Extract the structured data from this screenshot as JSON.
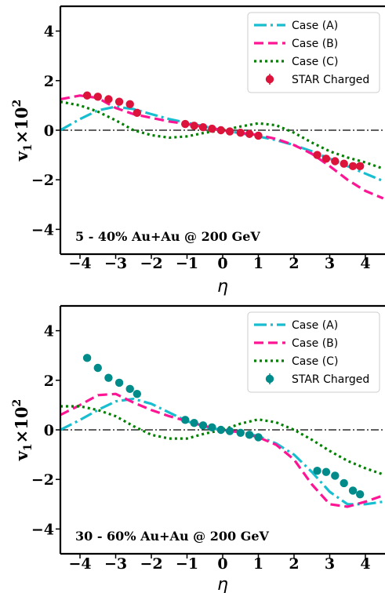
{
  "chart_data": [
    {
      "type": "line",
      "annotation": "5 - 40% Au+Au @ 200 GeV",
      "xlabel": "η",
      "ylabel": {
        "base": "v",
        "sub": "1",
        "mid": "×10",
        "sup": "2"
      },
      "xlim": [
        -4.55,
        4.55
      ],
      "ylim": [
        -5,
        5
      ],
      "xticks": [
        -4,
        -3,
        -2,
        -1,
        0,
        1,
        2,
        3,
        4
      ],
      "yticks": [
        -4,
        -2,
        0,
        2,
        4
      ],
      "tick_labels_x": [
        "−4",
        "−3",
        "−2",
        "−1",
        "0",
        "1",
        "2",
        "3",
        "4"
      ],
      "tick_labels_y": [
        "−4",
        "−2",
        "0",
        "2",
        "4"
      ],
      "reference_line": 0,
      "legend_position": "top-right",
      "series": [
        {
          "name": "Case (A)",
          "style": "dashdot",
          "color": "#17becf",
          "x": [
            -4.55,
            -4.0,
            -3.5,
            -3.0,
            -2.5,
            -2.0,
            -1.5,
            -1.0,
            -0.5,
            0.0,
            0.5,
            1.0,
            1.5,
            2.0,
            2.5,
            3.0,
            3.5,
            4.0,
            4.5
          ],
          "y": [
            0.0,
            0.45,
            0.8,
            0.95,
            0.85,
            0.65,
            0.45,
            0.3,
            0.15,
            0.0,
            -0.12,
            -0.25,
            -0.4,
            -0.6,
            -0.85,
            -1.15,
            -1.45,
            -1.75,
            -2.05
          ]
        },
        {
          "name": "Case (B)",
          "style": "dashed",
          "color": "#ff1493",
          "x": [
            -4.55,
            -4.0,
            -3.5,
            -3.0,
            -2.5,
            -2.0,
            -1.5,
            -1.0,
            -0.5,
            0.0,
            0.5,
            1.0,
            1.5,
            2.0,
            2.5,
            3.0,
            3.5,
            4.0,
            4.5
          ],
          "y": [
            1.25,
            1.4,
            1.3,
            0.9,
            0.65,
            0.5,
            0.35,
            0.25,
            0.12,
            0.0,
            -0.1,
            -0.2,
            -0.35,
            -0.6,
            -0.95,
            -1.45,
            -2.0,
            -2.45,
            -2.75
          ]
        },
        {
          "name": "Case (C)",
          "style": "dotted",
          "color": "#008000",
          "x": [
            -4.55,
            -4.0,
            -3.5,
            -3.0,
            -2.5,
            -2.0,
            -1.5,
            -1.0,
            -0.5,
            0.0,
            0.5,
            1.0,
            1.5,
            2.0,
            2.5,
            3.0,
            3.5,
            4.0,
            4.5
          ],
          "y": [
            1.15,
            1.0,
            0.75,
            0.4,
            0.0,
            -0.2,
            -0.3,
            -0.25,
            -0.1,
            0.0,
            0.15,
            0.28,
            0.2,
            -0.1,
            -0.5,
            -0.85,
            -1.1,
            -1.3,
            -1.55
          ]
        },
        {
          "name": "STAR Charged",
          "style": "markers",
          "color": "#dc143c",
          "x": [
            -3.8,
            -3.5,
            -3.2,
            -2.9,
            -2.6,
            -2.4,
            -1.05,
            -0.8,
            -0.55,
            -0.3,
            -0.05,
            0.2,
            0.5,
            0.75,
            1.0,
            2.65,
            2.9,
            3.15,
            3.4,
            3.65,
            3.85
          ],
          "y": [
            1.4,
            1.35,
            1.25,
            1.15,
            1.05,
            0.7,
            0.25,
            0.18,
            0.12,
            0.06,
            0.0,
            -0.05,
            -0.1,
            -0.15,
            -0.22,
            -1.0,
            -1.15,
            -1.25,
            -1.35,
            -1.45,
            -1.45
          ]
        }
      ]
    },
    {
      "type": "line",
      "annotation": "30 - 60% Au+Au @ 200 GeV",
      "xlabel": "η",
      "ylabel": {
        "base": "v",
        "sub": "1",
        "mid": "×10",
        "sup": "2"
      },
      "xlim": [
        -4.55,
        4.55
      ],
      "ylim": [
        -5,
        5
      ],
      "xticks": [
        -4,
        -3,
        -2,
        -1,
        0,
        1,
        2,
        3,
        4
      ],
      "yticks": [
        -4,
        -2,
        0,
        2,
        4
      ],
      "tick_labels_x": [
        "−4",
        "−3",
        "−2",
        "−1",
        "0",
        "1",
        "2",
        "3",
        "4"
      ],
      "tick_labels_y": [
        "−4",
        "−2",
        "0",
        "2",
        "4"
      ],
      "reference_line": 0,
      "legend_position": "top-right",
      "series": [
        {
          "name": "Case (A)",
          "style": "dashdot",
          "color": "#17becf",
          "x": [
            -4.55,
            -4.0,
            -3.5,
            -3.0,
            -2.5,
            -2.0,
            -1.5,
            -1.0,
            -0.5,
            0.0,
            0.5,
            1.0,
            1.5,
            2.0,
            2.5,
            3.0,
            3.5,
            4.0,
            4.5
          ],
          "y": [
            0.0,
            0.4,
            0.8,
            1.15,
            1.25,
            1.05,
            0.7,
            0.35,
            0.1,
            0.0,
            -0.1,
            -0.25,
            -0.55,
            -1.0,
            -1.7,
            -2.5,
            -3.0,
            -3.0,
            -2.9
          ]
        },
        {
          "name": "Case (B)",
          "style": "dashed",
          "color": "#ff1493",
          "x": [
            -4.55,
            -4.0,
            -3.5,
            -3.0,
            -2.5,
            -2.0,
            -1.5,
            -1.0,
            -0.5,
            0.0,
            0.5,
            1.0,
            1.5,
            2.0,
            2.5,
            3.0,
            3.5,
            4.0,
            4.5
          ],
          "y": [
            0.6,
            1.0,
            1.4,
            1.45,
            1.1,
            0.8,
            0.55,
            0.35,
            0.15,
            0.0,
            -0.1,
            -0.3,
            -0.6,
            -1.2,
            -2.2,
            -3.0,
            -3.1,
            -2.9,
            -2.65
          ]
        },
        {
          "name": "Case (C)",
          "style": "dotted",
          "color": "#008000",
          "x": [
            -4.55,
            -4.0,
            -3.5,
            -3.0,
            -2.5,
            -2.0,
            -1.5,
            -1.0,
            -0.5,
            0.0,
            0.5,
            1.0,
            1.5,
            2.0,
            2.5,
            3.0,
            3.5,
            4.0,
            4.5
          ],
          "y": [
            0.95,
            0.95,
            0.8,
            0.55,
            0.15,
            -0.2,
            -0.35,
            -0.35,
            -0.15,
            0.0,
            0.25,
            0.42,
            0.3,
            0.0,
            -0.4,
            -0.85,
            -1.25,
            -1.55,
            -1.8
          ]
        },
        {
          "name": "STAR Charged",
          "style": "markers",
          "color": "#008b8b",
          "x": [
            -3.8,
            -3.5,
            -3.2,
            -2.9,
            -2.6,
            -2.4,
            -1.05,
            -0.8,
            -0.55,
            -0.3,
            -0.05,
            0.2,
            0.5,
            0.75,
            1.0,
            2.65,
            2.9,
            3.15,
            3.4,
            3.65,
            3.85
          ],
          "y": [
            2.9,
            2.5,
            2.1,
            1.9,
            1.65,
            1.45,
            0.4,
            0.28,
            0.18,
            0.1,
            0.0,
            -0.05,
            -0.12,
            -0.2,
            -0.3,
            -1.65,
            -1.7,
            -1.85,
            -2.15,
            -2.45,
            -2.6
          ]
        }
      ]
    }
  ]
}
